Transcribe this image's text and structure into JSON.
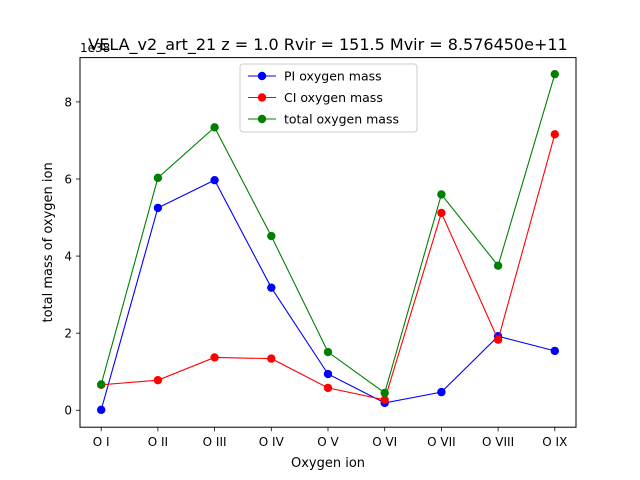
{
  "chart_data": {
    "type": "line",
    "title": "VELA_v2_art_21 z = 1.0 Rvir = 151.5 Mvir = 8.576450e+11",
    "xlabel": "Oxygen ion",
    "ylabel": "total mass of oxygen ion",
    "y_offset_label": "1e38",
    "categories": [
      "O I",
      "O II",
      "O III",
      "O IV",
      "O V",
      "O VI",
      "O VII",
      "O VIII",
      "O IX"
    ],
    "ylim": [
      -0.44,
      9.15
    ],
    "yticks": [
      "0",
      "2",
      "4",
      "6",
      "8"
    ],
    "ytick_values": [
      0,
      2,
      4,
      6,
      8
    ],
    "grid": false,
    "legend_position": "top-center",
    "series": [
      {
        "name": "PI oxygen mass",
        "color": "#0000ff",
        "values": [
          0.01,
          5.25,
          5.97,
          3.18,
          0.94,
          0.19,
          0.47,
          1.92,
          1.54
        ]
      },
      {
        "name": "CI oxygen mass",
        "color": "#ff0000",
        "values": [
          0.66,
          0.78,
          1.37,
          1.34,
          0.58,
          0.27,
          5.12,
          1.83,
          7.16
        ]
      },
      {
        "name": "total oxygen mass",
        "color": "#008000",
        "values": [
          0.67,
          6.03,
          7.34,
          4.52,
          1.51,
          0.45,
          5.6,
          3.75,
          8.72
        ]
      }
    ]
  }
}
